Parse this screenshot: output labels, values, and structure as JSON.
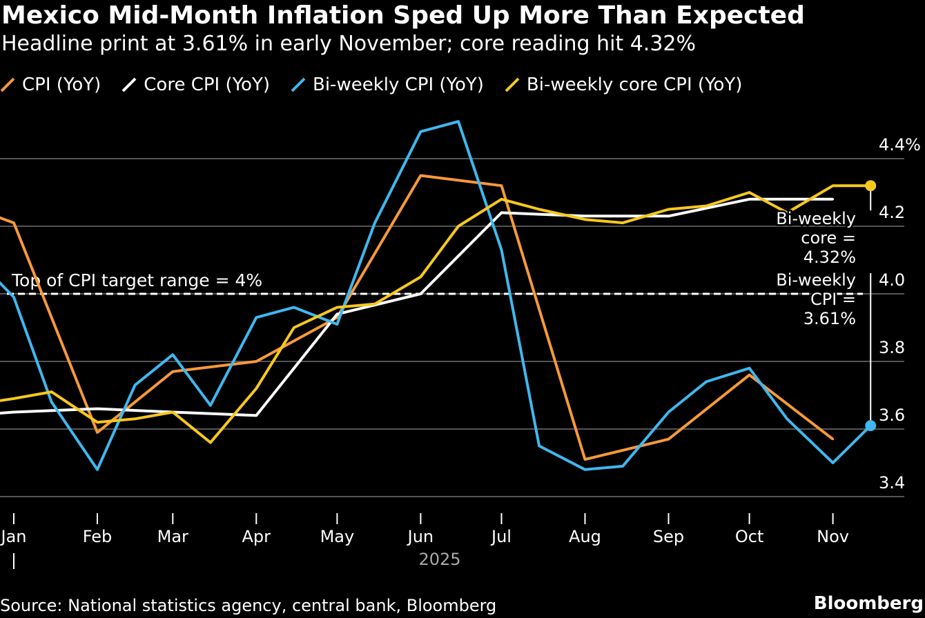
{
  "title": "Mexico Mid-Month Inflation Sped Up More Than Expected",
  "subtitle": "Headline print at 3.61% in early November; core reading hit 4.32%",
  "source": "Source: National statistics agency, central bank, Bloomberg",
  "brand": "Bloomberg",
  "chart_data": {
    "type": "line",
    "year_label": "2025",
    "x_tick_labels": [
      "Jan",
      "Feb",
      "Mar",
      "Apr",
      "May",
      "Jun",
      "Jul",
      "Aug",
      "Sep",
      "Oct",
      "Nov"
    ],
    "y_tick_labels": [
      "4.4%",
      "4.2",
      "4.0",
      "3.8",
      "3.6",
      "3.4"
    ],
    "y_ticks": [
      4.4,
      4.2,
      4.0,
      3.8,
      3.6,
      3.4
    ],
    "ylim": [
      3.4,
      4.4
    ],
    "grid": true,
    "legend_position": "top",
    "reference_line": {
      "value": 4.0,
      "label": "Top of CPI target range = 4%"
    },
    "annotations": [
      {
        "lines": [
          "Bi-weekly",
          "core =",
          "4.32%"
        ],
        "series": "Bi-weekly core CPI (YoY)",
        "value": 4.32
      },
      {
        "lines": [
          "Bi-weekly",
          "CPI =",
          "3.61%"
        ],
        "series": "Bi-weekly CPI (YoY)",
        "value": 3.61
      }
    ],
    "series": [
      {
        "name": "CPI (YoY)",
        "color": "#f7993b",
        "points": [
          [
            "2024-12-15",
            4.26
          ],
          [
            "2025-01-01",
            4.21
          ],
          [
            "2025-02-01",
            3.59
          ],
          [
            "2025-03-01",
            3.77
          ],
          [
            "2025-04-01",
            3.8
          ],
          [
            "2025-05-01",
            3.93
          ],
          [
            "2025-06-01",
            4.35
          ],
          [
            "2025-07-01",
            4.32
          ],
          [
            "2025-08-01",
            3.51
          ],
          [
            "2025-09-01",
            3.57
          ],
          [
            "2025-10-01",
            3.76
          ],
          [
            "2025-11-01",
            3.57
          ]
        ]
      },
      {
        "name": "Core CPI (YoY)",
        "color": "#ffffff",
        "points": [
          [
            "2024-12-15",
            3.64
          ],
          [
            "2025-01-01",
            3.65
          ],
          [
            "2025-02-01",
            3.66
          ],
          [
            "2025-03-01",
            3.65
          ],
          [
            "2025-04-01",
            3.64
          ],
          [
            "2025-05-01",
            3.94
          ],
          [
            "2025-06-01",
            4.0
          ],
          [
            "2025-07-01",
            4.24
          ],
          [
            "2025-08-01",
            4.23
          ],
          [
            "2025-09-01",
            4.23
          ],
          [
            "2025-10-01",
            4.28
          ],
          [
            "2025-11-01",
            4.28
          ]
        ]
      },
      {
        "name": "Bi-weekly CPI (YoY)",
        "color": "#3fb8ef",
        "points": [
          [
            "2024-12-15",
            4.13
          ],
          [
            "2025-01-01",
            3.99
          ],
          [
            "2025-01-15",
            3.68
          ],
          [
            "2025-02-01",
            3.48
          ],
          [
            "2025-02-15",
            3.73
          ],
          [
            "2025-03-01",
            3.82
          ],
          [
            "2025-03-15",
            3.67
          ],
          [
            "2025-04-01",
            3.93
          ],
          [
            "2025-04-15",
            3.96
          ],
          [
            "2025-05-01",
            3.91
          ],
          [
            "2025-05-15",
            4.21
          ],
          [
            "2025-06-01",
            4.48
          ],
          [
            "2025-06-15",
            4.51
          ],
          [
            "2025-07-01",
            4.13
          ],
          [
            "2025-07-15",
            3.55
          ],
          [
            "2025-08-01",
            3.48
          ],
          [
            "2025-08-15",
            3.49
          ],
          [
            "2025-09-01",
            3.65
          ],
          [
            "2025-09-15",
            3.74
          ],
          [
            "2025-10-01",
            3.78
          ],
          [
            "2025-10-15",
            3.63
          ],
          [
            "2025-11-01",
            3.5
          ],
          [
            "2025-11-15",
            3.61
          ]
        ]
      },
      {
        "name": "Bi-weekly core CPI (YoY)",
        "color": "#f7c81e",
        "points": [
          [
            "2024-12-15",
            3.67
          ],
          [
            "2025-01-01",
            3.69
          ],
          [
            "2025-01-15",
            3.71
          ],
          [
            "2025-02-01",
            3.62
          ],
          [
            "2025-02-15",
            3.63
          ],
          [
            "2025-03-01",
            3.65
          ],
          [
            "2025-03-15",
            3.56
          ],
          [
            "2025-04-01",
            3.72
          ],
          [
            "2025-04-15",
            3.9
          ],
          [
            "2025-05-01",
            3.96
          ],
          [
            "2025-05-15",
            3.97
          ],
          [
            "2025-06-01",
            4.05
          ],
          [
            "2025-06-15",
            4.2
          ],
          [
            "2025-07-01",
            4.28
          ],
          [
            "2025-07-15",
            4.25
          ],
          [
            "2025-08-01",
            4.22
          ],
          [
            "2025-08-15",
            4.21
          ],
          [
            "2025-09-01",
            4.25
          ],
          [
            "2025-09-15",
            4.26
          ],
          [
            "2025-10-01",
            4.3
          ],
          [
            "2025-10-15",
            4.24
          ],
          [
            "2025-11-01",
            4.32
          ],
          [
            "2025-11-15",
            4.32
          ]
        ]
      }
    ]
  }
}
